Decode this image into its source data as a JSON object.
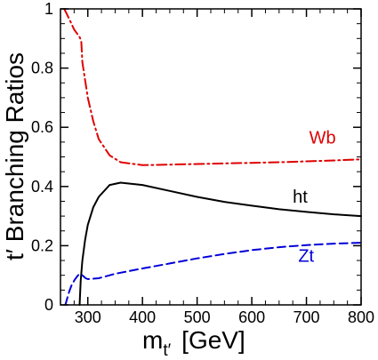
{
  "chart_data": {
    "type": "line",
    "title": "",
    "xlabel_main": "m",
    "xlabel_sub": "t′",
    "xlabel_units": "[GeV]",
    "ylabel": "t′ Branching Ratios",
    "xlim": [
      250,
      800
    ],
    "ylim": [
      0,
      1
    ],
    "xticks": [
      300,
      400,
      500,
      600,
      700,
      800
    ],
    "xtick_labels": [
      "300",
      "400",
      "500",
      "600",
      "700",
      "800"
    ],
    "yticks": [
      0,
      0.2,
      0.4,
      0.6,
      0.8,
      1
    ],
    "ytick_labels": [
      "0",
      "0.2",
      "0.4",
      "0.6",
      "0.8",
      "1"
    ],
    "grid": false,
    "legend": "inline labels next to curves",
    "series": [
      {
        "name": "Wb",
        "color": "#e00000",
        "dash": "dash-dot",
        "x": [
          257,
          265,
          275,
          285,
          288,
          290,
          300,
          310,
          320,
          340,
          360,
          400,
          450,
          500,
          550,
          600,
          650,
          700,
          750,
          800
        ],
        "y": [
          1.0,
          0.97,
          0.93,
          0.905,
          0.89,
          0.82,
          0.7,
          0.62,
          0.56,
          0.505,
          0.482,
          0.472,
          0.474,
          0.476,
          0.478,
          0.48,
          0.482,
          0.485,
          0.488,
          0.492
        ]
      },
      {
        "name": "ht",
        "color": "#000000",
        "dash": "solid",
        "x": [
          285,
          287,
          290,
          295,
          300,
          310,
          320,
          340,
          360,
          400,
          450,
          500,
          550,
          600,
          650,
          700,
          750,
          800
        ],
        "y": [
          0.0,
          0.08,
          0.15,
          0.22,
          0.27,
          0.33,
          0.365,
          0.405,
          0.413,
          0.405,
          0.385,
          0.365,
          0.348,
          0.335,
          0.323,
          0.314,
          0.306,
          0.3
        ]
      },
      {
        "name": "Zt",
        "color": "#0000d8",
        "dash": "dashed",
        "x": [
          259,
          262,
          266,
          270,
          276,
          282,
          286,
          290,
          296,
          300,
          320,
          350,
          400,
          450,
          500,
          550,
          600,
          650,
          700,
          750,
          800
        ],
        "y": [
          0.0,
          0.02,
          0.045,
          0.065,
          0.085,
          0.1,
          0.104,
          0.1,
          0.09,
          0.087,
          0.09,
          0.105,
          0.123,
          0.14,
          0.157,
          0.172,
          0.185,
          0.195,
          0.202,
          0.207,
          0.21
        ]
      }
    ],
    "annotations": [
      {
        "text": "Wb",
        "color": "#e00000",
        "x": 705,
        "y": 0.545
      },
      {
        "text": "ht",
        "color": "#000000",
        "x": 675,
        "y": 0.345
      },
      {
        "text": "Zt",
        "color": "#0000d8",
        "x": 685,
        "y": 0.145
      }
    ]
  }
}
